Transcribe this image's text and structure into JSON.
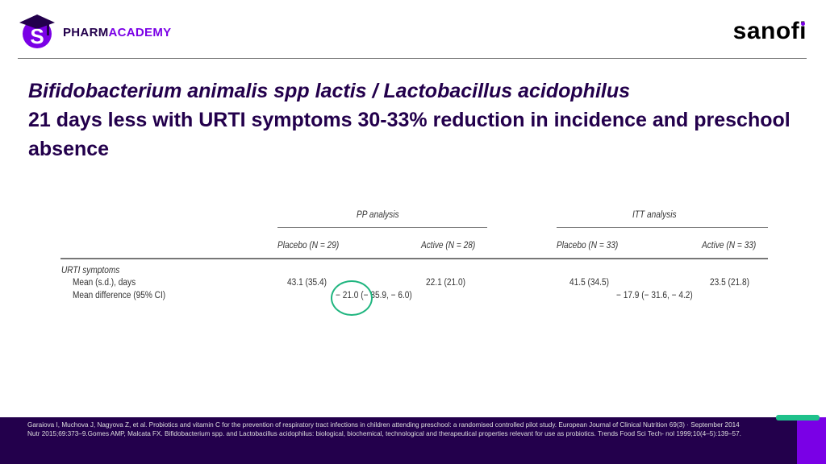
{
  "header": {
    "brand_part1": "PHARM",
    "brand_part2": "ACADEMY",
    "partner_logo": "sanofi"
  },
  "title": {
    "line1": "Bifidobacterium animalis spp lactis / Lactobacillus acidophilus",
    "line2": "21 days less with URTI symptoms 30-33% reduction in incidence and preschool absence"
  },
  "table": {
    "groups": [
      "PP analysis",
      "ITT analysis"
    ],
    "columns": [
      "Placebo (N = 29)",
      "Active (N = 28)",
      "Placebo (N = 33)",
      "Active (N = 33)"
    ],
    "section": "URTI symptoms",
    "rows": [
      {
        "label": "Mean (s.d.), days",
        "values": [
          "43.1 (35.4)",
          "22.1 (21.0)",
          "41.5 (34.5)",
          "23.5 (21.8)"
        ]
      },
      {
        "label": "Mean difference (95% CI)",
        "values": [
          "− 21.0 (− 35.9, − 6.0)",
          "− 17.9 (− 31.6, − 4.2)"
        ]
      }
    ]
  },
  "footer": {
    "refs": [
      "Garaiova I, Muchova J, Nagyova Z, et al. Probiotics and vitamin C for the prevention of respiratory tract infections in children attending preschool: a randomised controlled pilot study. European Journal of Clinical Nutrition 69(3) · September 2014",
      "Nutr 2015;69:373–9.Gomes AMP, Malcata FX. Bifidobacterium spp. and Lactobacillus acidophilus: biological, biochemical, technological and therapeutical properties relevant for use as probiotics. Trends Food Sci Tech- nol 1999;10(4–5):139–57."
    ]
  },
  "colors": {
    "navy": "#23004c",
    "purple": "#7a00e6",
    "green": "#1fc18b"
  }
}
